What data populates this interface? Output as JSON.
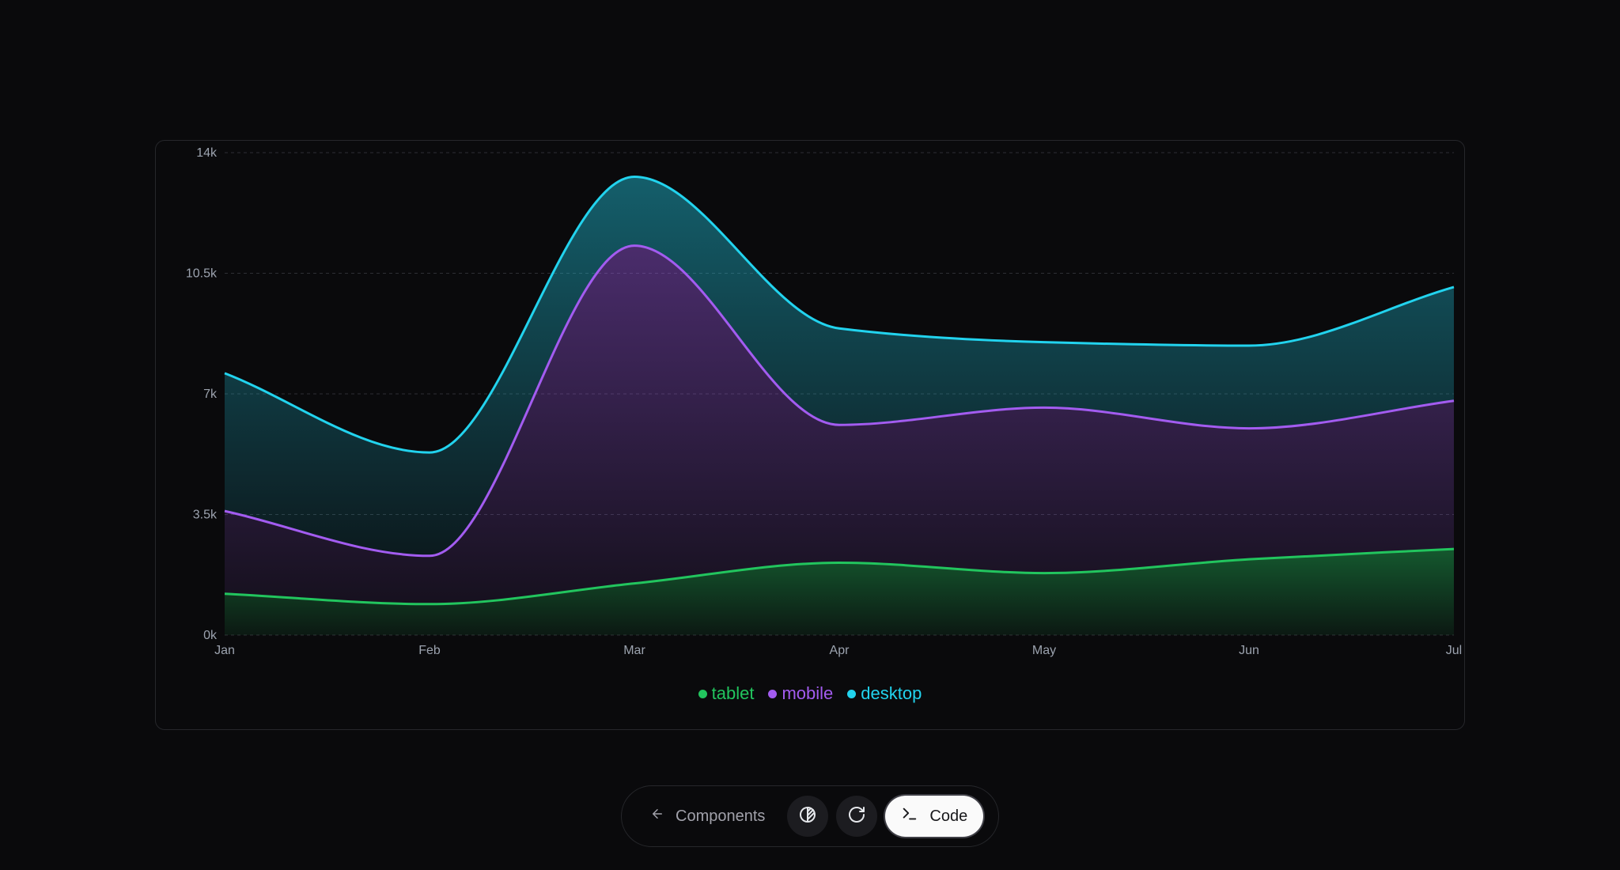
{
  "chart_data": {
    "type": "area",
    "stacked": true,
    "categories": [
      "Jan",
      "Feb",
      "Mar",
      "Apr",
      "May",
      "Jun",
      "Jul"
    ],
    "yticks": [
      "0k",
      "3.5k",
      "7k",
      "10.5k",
      "14k"
    ],
    "ytick_values": [
      0,
      3500,
      7000,
      10500,
      14000
    ],
    "ylim": [
      0,
      14000
    ],
    "grid": true,
    "legend_position": "bottom",
    "series": [
      {
        "name": "tablet",
        "color": "#22c55e",
        "values": [
          1200,
          900,
          1500,
          2100,
          1800,
          2200,
          2500
        ]
      },
      {
        "name": "mobile",
        "color": "#a35cf0",
        "values": [
          2400,
          1400,
          9800,
          4000,
          4800,
          3800,
          4300
        ]
      },
      {
        "name": "desktop",
        "color": "#22d3ee",
        "values": [
          4000,
          3000,
          2000,
          2800,
          1900,
          2400,
          3300
        ]
      }
    ]
  },
  "toolbar": {
    "back_label": "Components",
    "back_icon": "arrow-left-icon",
    "theme_icon": "contrast-icon",
    "refresh_icon": "refresh-icon",
    "code_icon": "terminal-icon",
    "code_label": "Code"
  }
}
